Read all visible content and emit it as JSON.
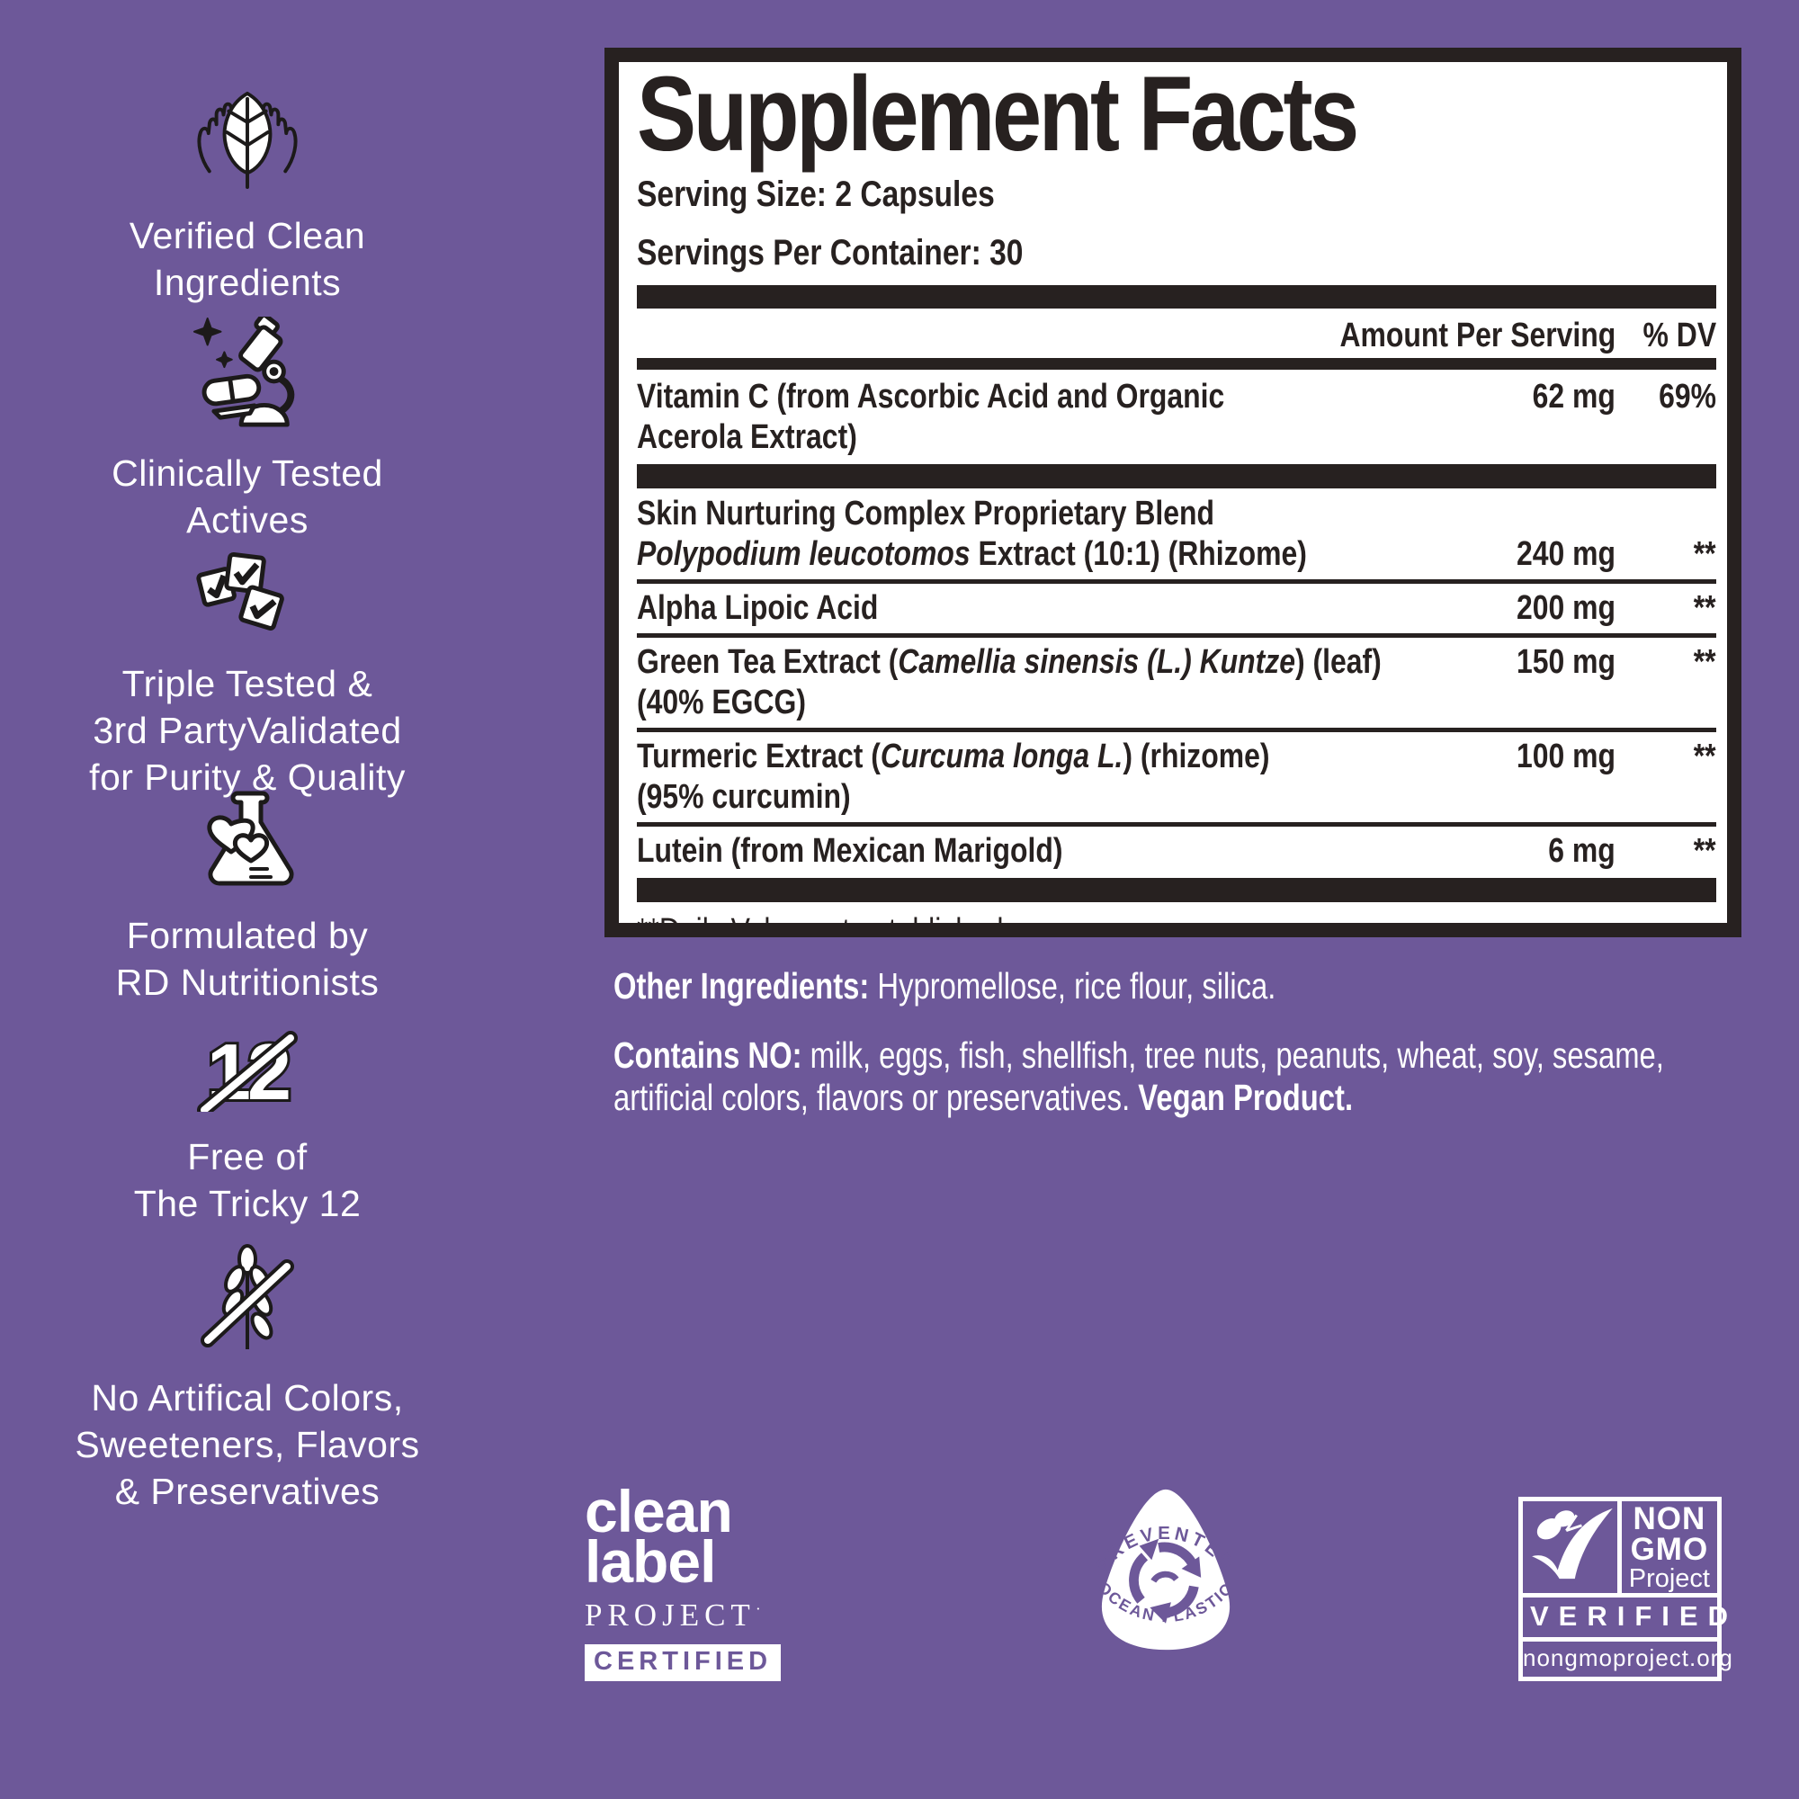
{
  "page": {
    "background": "#6d5899",
    "ink": "#272120",
    "text_white": "#ffffff"
  },
  "sidebar": {
    "claims": [
      {
        "icon": "hands-leaf-icon",
        "label": "Verified Clean\nIngredients"
      },
      {
        "icon": "microscope-icon",
        "label": "Clinically Tested\nActives"
      },
      {
        "icon": "checkboxes-icon",
        "label": "Triple Tested &\n3rd PartyValidated\nfor Purity & Quality"
      },
      {
        "icon": "flask-hearts-icon",
        "label": "Formulated by\nRD Nutritionists"
      },
      {
        "icon": "tricky-12-icon",
        "label": "Free of\nThe Tricky 12"
      },
      {
        "icon": "wheat-free-icon",
        "label": "No Artifical Colors,\nSweeteners, Flavors\n& Preservatives"
      }
    ]
  },
  "panel": {
    "title": "Supplement Facts",
    "serving_size": "Serving Size: 2 Capsules",
    "servings_per_container": "Servings Per Container: 30",
    "col_amount": "Amount Per Serving",
    "col_dv": "% DV",
    "rows": [
      {
        "lines": [
          {
            "segs": [
              {
                "t": "Vitamin C (from Ascorbic Acid and Organic"
              }
            ],
            "amount": "62 mg",
            "dv": "69%"
          },
          {
            "segs": [
              {
                "t": "Acerola Extract)"
              }
            ]
          }
        ]
      },
      {
        "sep": "thick"
      },
      {
        "lines": [
          {
            "segs": [
              {
                "t": "Skin Nurturing Complex Proprietary Blend"
              }
            ]
          },
          {
            "segs": [
              {
                "t": "Polypodium leucotomos",
                "i": true
              },
              {
                "t": " Extract (10:1) (Rhizome)"
              }
            ],
            "amount": "240 mg",
            "dv": "**"
          }
        ]
      },
      {
        "sep": "hair"
      },
      {
        "lines": [
          {
            "segs": [
              {
                "t": "Alpha Lipoic Acid"
              }
            ],
            "amount": "200 mg",
            "dv": "**"
          }
        ]
      },
      {
        "sep": "hair"
      },
      {
        "lines": [
          {
            "segs": [
              {
                "t": "Green Tea Extract ("
              },
              {
                "t": "Camellia sinensis (L.) Kuntze",
                "i": true
              },
              {
                "t": ") (leaf)"
              }
            ],
            "amount": "150 mg",
            "dv": "**"
          },
          {
            "segs": [
              {
                "t": "(40% EGCG)"
              }
            ]
          }
        ]
      },
      {
        "sep": "hair"
      },
      {
        "lines": [
          {
            "segs": [
              {
                "t": "Turmeric Extract ("
              },
              {
                "t": "Curcuma longa L.",
                "i": true
              },
              {
                "t": ") (rhizome)"
              }
            ],
            "amount": "100 mg",
            "dv": "**"
          },
          {
            "segs": [
              {
                "t": "(95% curcumin)"
              }
            ]
          }
        ]
      },
      {
        "sep": "hair"
      },
      {
        "lines": [
          {
            "segs": [
              {
                "t": "Lutein (from Mexican Marigold)"
              }
            ],
            "amount": "6 mg",
            "dv": "**"
          }
        ]
      },
      {
        "sep": "thick"
      }
    ],
    "footnote": "**Daily Value not established."
  },
  "info": {
    "other": {
      "segs": [
        {
          "t": "Other Ingredients: ",
          "b": true
        },
        {
          "t": "Hypromellose, rice flour, silica."
        }
      ]
    },
    "contains": {
      "lines": [
        [
          {
            "t": "Contains NO: ",
            "b": true
          },
          {
            "t": "milk, eggs, fish, shellfish, tree nuts, peanuts, wheat, soy, sesame,"
          }
        ],
        [
          {
            "t": "artificial colors, flavors or preservatives. "
          },
          {
            "t": "Vegan Product.",
            "b": true
          }
        ]
      ]
    }
  },
  "logos": {
    "clean_label": {
      "line1": "clean",
      "line2": "label",
      "line3": "PROJECT",
      "mark": "·",
      "badge": "CERTIFIED"
    },
    "ocean": {
      "top": "PREVENTED",
      "bottom": "OCEAN PLASTIC"
    },
    "nongmo": {
      "l1": "NON",
      "l2": "GMO",
      "l3": "Project",
      "verified": "VERIFIED",
      "url": "nongmoproject.org"
    }
  }
}
